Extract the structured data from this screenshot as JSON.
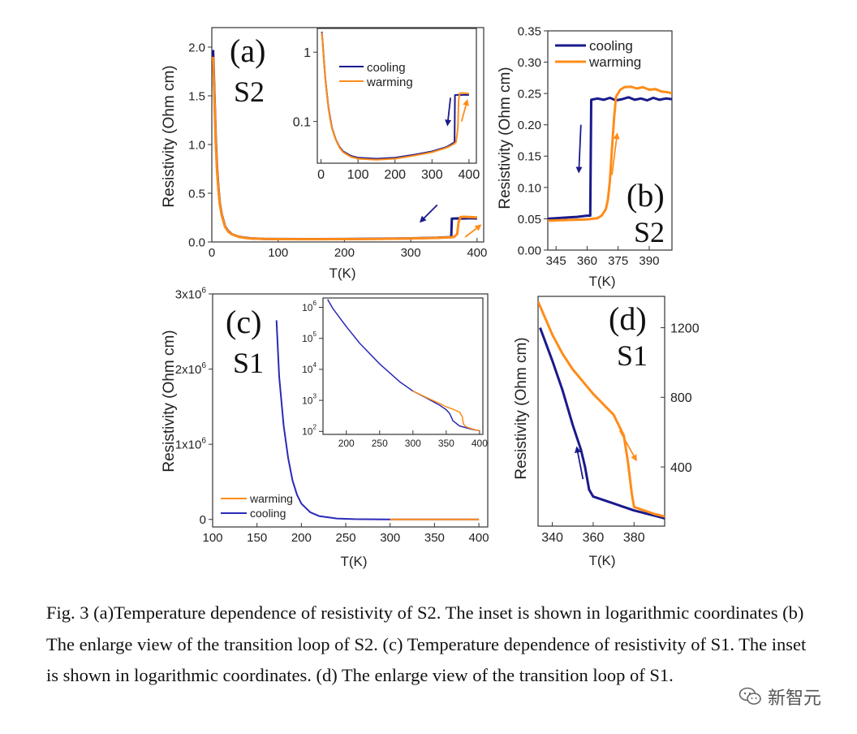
{
  "caption": "Fig. 3 (a)Temperature dependence of resistivity of S2. The inset is shown in logarithmic coordinates (b) The enlarge view of the transition loop of S2. (c) Temperature dependence of resistivity of S1. The inset is shown in logarithmic coordinates. (d) The enlarge view of the transition loop of S1.",
  "watermark": {
    "text": "新智元",
    "icon": "wechat-icon"
  },
  "colors": {
    "cooling": "#1a1a8c",
    "warming": "#ff8c1a",
    "axis": "#333333"
  },
  "chart_data": [
    {
      "id": "a",
      "panel_label": "(a)",
      "sample": "S2",
      "type": "line",
      "xlabel": "T(K)",
      "ylabel": "Resistivity (Ohm cm)",
      "xlim": [
        0,
        410
      ],
      "ylim": [
        0,
        2.2
      ],
      "xticks": [
        0,
        100,
        200,
        300,
        400
      ],
      "xtick_labels": [
        "0",
        "100",
        "200",
        "300",
        "400"
      ],
      "yticks": [
        0,
        0.5,
        1,
        1.5,
        2
      ],
      "ytick_labels": [
        "0.0",
        "0.5",
        "1.0",
        "1.5",
        "2.0"
      ],
      "series": [
        {
          "name": "cooling",
          "color": "#1a1a8c",
          "x": [
            2,
            4,
            6,
            8,
            10,
            12,
            15,
            20,
            25,
            30,
            40,
            50,
            60,
            80,
            100,
            150,
            200,
            250,
            300,
            340,
            355,
            361,
            362,
            370,
            380,
            390,
            400
          ],
          "y": [
            1.97,
            1.5,
            1.05,
            0.75,
            0.55,
            0.4,
            0.28,
            0.16,
            0.11,
            0.08,
            0.055,
            0.043,
            0.037,
            0.032,
            0.03,
            0.029,
            0.03,
            0.033,
            0.037,
            0.043,
            0.048,
            0.05,
            0.24,
            0.242,
            0.241,
            0.243,
            0.241
          ]
        },
        {
          "name": "warming",
          "color": "#ff8c1a",
          "x": [
            2,
            4,
            6,
            8,
            10,
            12,
            15,
            20,
            25,
            30,
            40,
            50,
            60,
            80,
            100,
            150,
            200,
            250,
            300,
            340,
            355,
            365,
            370,
            372,
            375,
            380,
            390,
            400
          ],
          "y": [
            1.9,
            1.45,
            1.0,
            0.72,
            0.53,
            0.39,
            0.27,
            0.155,
            0.105,
            0.078,
            0.054,
            0.042,
            0.036,
            0.031,
            0.029,
            0.028,
            0.029,
            0.032,
            0.036,
            0.042,
            0.046,
            0.05,
            0.08,
            0.2,
            0.255,
            0.258,
            0.255,
            0.252
          ]
        }
      ],
      "annotations": [
        {
          "type": "arrow",
          "color": "#1a1a8c",
          "from": [
            340,
            0.38
          ],
          "to": [
            315,
            0.21
          ]
        },
        {
          "type": "arrow",
          "color": "#ff8c1a",
          "from": [
            382,
            0.05
          ],
          "to": [
            405,
            0.17
          ]
        }
      ],
      "inset": {
        "type": "line",
        "yscale": "log",
        "xlim": [
          -10,
          420
        ],
        "ylim": [
          0.025,
          2.2
        ],
        "xticks": [
          0,
          100,
          200,
          300,
          400
        ],
        "xtick_labels": [
          "0",
          "100",
          "200",
          "300",
          "400"
        ],
        "yticks": [
          0.1,
          1
        ],
        "ytick_labels": [
          "0.1",
          "1"
        ],
        "legend": [
          "cooling",
          "warming"
        ],
        "annotations": [
          {
            "type": "arrow",
            "color": "#1a1a8c",
            "from": [
              350,
              0.22
            ],
            "to": [
              342,
              0.09
            ]
          },
          {
            "type": "arrow",
            "color": "#ff8c1a",
            "from": [
              380,
              0.1
            ],
            "to": [
              395,
              0.2
            ]
          }
        ]
      }
    },
    {
      "id": "b",
      "panel_label": "(b)",
      "sample": "S2",
      "type": "line",
      "xlabel": "T(K)",
      "ylabel": "Resistivity (Ohm cm)",
      "xlim": [
        341,
        401
      ],
      "ylim": [
        0,
        0.35
      ],
      "xticks": [
        345,
        360,
        375,
        390
      ],
      "xtick_labels": [
        "345",
        "360",
        "375",
        "390"
      ],
      "yticks": [
        0,
        0.05,
        0.1,
        0.15,
        0.2,
        0.25,
        0.3,
        0.35
      ],
      "ytick_labels": [
        "0.00",
        "0.05",
        "0.10",
        "0.15",
        "0.20",
        "0.25",
        "0.30",
        "0.35"
      ],
      "legend": {
        "entries": [
          "cooling",
          "warming"
        ],
        "position": "top-left"
      },
      "series": [
        {
          "name": "cooling",
          "color": "#1a1a8c",
          "x": [
            341,
            345,
            350,
            355,
            360,
            361.5,
            362,
            365,
            368,
            371,
            374,
            377,
            380,
            383,
            386,
            389,
            392,
            395,
            398,
            401
          ],
          "y": [
            0.05,
            0.051,
            0.052,
            0.053,
            0.055,
            0.055,
            0.24,
            0.242,
            0.24,
            0.243,
            0.239,
            0.241,
            0.244,
            0.24,
            0.242,
            0.239,
            0.243,
            0.24,
            0.242,
            0.241
          ]
        },
        {
          "name": "warming",
          "color": "#ff8c1a",
          "x": [
            341,
            350,
            360,
            365,
            367,
            369,
            370,
            371,
            372,
            373,
            374,
            376,
            378,
            381,
            384,
            387,
            390,
            393,
            396,
            399,
            401
          ],
          "y": [
            0.047,
            0.048,
            0.049,
            0.051,
            0.055,
            0.065,
            0.08,
            0.11,
            0.16,
            0.21,
            0.245,
            0.256,
            0.26,
            0.261,
            0.258,
            0.26,
            0.256,
            0.257,
            0.253,
            0.252,
            0.25
          ]
        }
      ],
      "annotations": [
        {
          "type": "arrow",
          "color": "#1a1a8c",
          "from": [
            357,
            0.2
          ],
          "to": [
            356,
            0.125
          ]
        },
        {
          "type": "arrow",
          "color": "#ff8c1a",
          "from": [
            372,
            0.12
          ],
          "to": [
            374.5,
            0.185
          ]
        }
      ]
    },
    {
      "id": "c",
      "panel_label": "(c)",
      "sample": "S1",
      "type": "line",
      "xlabel": "T(K)",
      "ylabel": "Resistivity (Ohm cm)",
      "xlim": [
        100,
        410
      ],
      "ylim": [
        -100000,
        3000000
      ],
      "xticks": [
        100,
        150,
        200,
        250,
        300,
        350,
        400
      ],
      "xtick_labels": [
        "100",
        "150",
        "200",
        "250",
        "300",
        "350",
        "400"
      ],
      "yticks": [
        0,
        1000000,
        2000000,
        3000000
      ],
      "ytick_labels": [
        "0",
        "1x10^6",
        "2x10^6",
        "3x10^6"
      ],
      "legend": {
        "entries": [
          "warming",
          "cooling"
        ],
        "position": "bottom-left"
      },
      "series": [
        {
          "name": "cooling",
          "color": "#2a2ab8",
          "x": [
            172,
            175,
            180,
            185,
            190,
            195,
            200,
            210,
            220,
            240,
            260,
            300,
            350,
            400
          ],
          "y": [
            2650000,
            1900000,
            1250000,
            820000,
            520000,
            330000,
            210000,
            95000,
            45000,
            12000,
            4000,
            600,
            100,
            50
          ]
        },
        {
          "name": "warming",
          "color": "#ff8c1a",
          "x": [
            300,
            350,
            400
          ],
          "y": [
            600,
            500,
            100
          ]
        }
      ],
      "inset": {
        "type": "line",
        "yscale": "log",
        "xlim": [
          165,
          405
        ],
        "ylim": [
          80,
          2000000
        ],
        "xticks": [
          200,
          250,
          300,
          350,
          400
        ],
        "xtick_labels": [
          "200",
          "250",
          "300",
          "350",
          "400"
        ],
        "yticks": [
          100,
          1000,
          10000,
          100000,
          1000000
        ],
        "ytick_labels": [
          "10^2",
          "10^3",
          "10^4",
          "10^5",
          "10^6"
        ]
      }
    },
    {
      "id": "d",
      "panel_label": "(d)",
      "sample": "S1",
      "type": "line",
      "xlabel": "T(K)",
      "ylabel": "Resistivity (Ohm cm)",
      "xlim": [
        333,
        395
      ],
      "ylim": [
        60,
        1380
      ],
      "xticks": [
        340,
        360,
        380
      ],
      "xtick_labels": [
        "340",
        "360",
        "380"
      ],
      "yticks": [
        400,
        800,
        1200
      ],
      "ytick_labels": [
        "400",
        "800",
        "1200"
      ],
      "series": [
        {
          "name": "cooling",
          "color": "#1a1a8c",
          "x": [
            334,
            340,
            345,
            350,
            354,
            356,
            358,
            360,
            370,
            380,
            390,
            395
          ],
          "y": [
            1200,
            1010,
            840,
            640,
            500,
            400,
            270,
            230,
            190,
            150,
            120,
            105
          ]
        },
        {
          "name": "warming",
          "color": "#ff8c1a",
          "x": [
            333,
            340,
            345,
            350,
            360,
            370,
            375,
            377,
            379,
            380,
            390,
            395
          ],
          "y": [
            1350,
            1160,
            1050,
            960,
            820,
            700,
            580,
            430,
            240,
            170,
            130,
            115
          ]
        }
      ],
      "annotations": [
        {
          "type": "arrow",
          "color": "#1a1a8c",
          "from": [
            355,
            330
          ],
          "to": [
            352,
            510
          ]
        },
        {
          "type": "arrow",
          "color": "#ff8c1a",
          "from": [
            373,
            610
          ],
          "to": [
            381,
            440
          ]
        }
      ]
    }
  ]
}
